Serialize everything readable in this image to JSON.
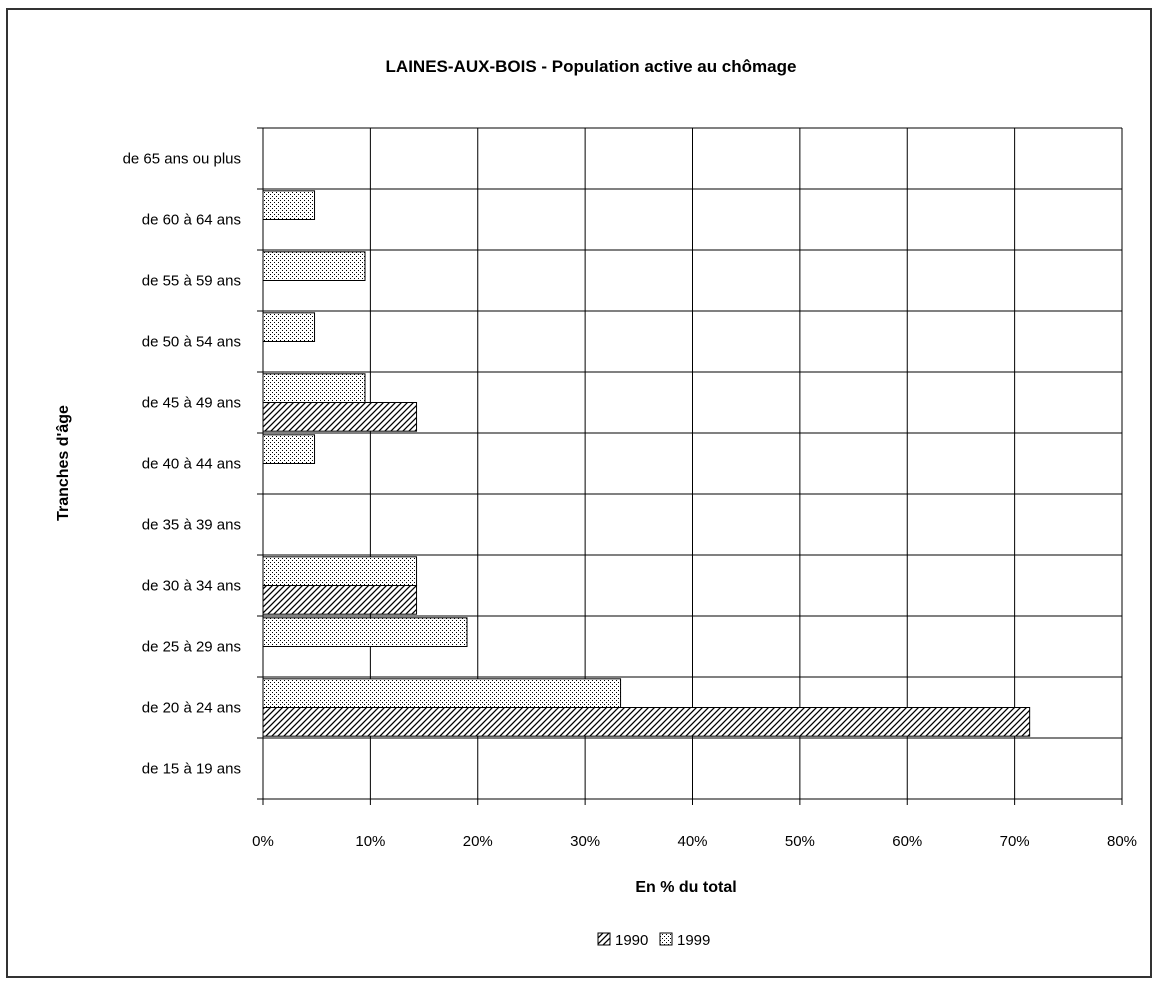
{
  "chart_data": {
    "type": "bar",
    "orientation": "horizontal",
    "title": "LAINES-AUX-BOIS - Population active au chômage",
    "xlabel": "En % du total",
    "ylabel": "Tranches d'âge",
    "xlim": [
      0,
      80
    ],
    "x_ticks": [
      "0%",
      "10%",
      "20%",
      "30%",
      "40%",
      "50%",
      "60%",
      "70%",
      "80%"
    ],
    "x_tick_values": [
      0,
      10,
      20,
      30,
      40,
      50,
      60,
      70,
      80
    ],
    "grid": true,
    "legend_position": "bottom",
    "categories": [
      "de 15 à 19 ans",
      "de 20 à 24 ans",
      "de 25 à 29 ans",
      "de 30 à 34 ans",
      "de 35 à 39 ans",
      "de 40 à 44 ans",
      "de 45 à 49 ans",
      "de 50 à 54 ans",
      "de 55 à 59 ans",
      "de 60 à 64 ans",
      "de 65 ans ou plus"
    ],
    "series": [
      {
        "name": "1990",
        "pattern": "diagonal-hatch",
        "values": [
          0,
          71.4,
          0,
          14.3,
          0,
          0,
          14.3,
          0,
          0,
          0,
          0
        ]
      },
      {
        "name": "1999",
        "pattern": "dotted",
        "values": [
          0,
          33.3,
          19.0,
          14.3,
          0,
          4.8,
          9.5,
          4.8,
          9.5,
          4.8,
          0
        ]
      }
    ]
  }
}
